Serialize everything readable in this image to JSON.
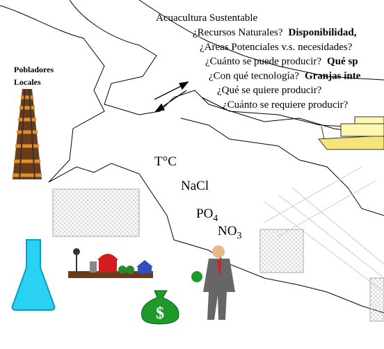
{
  "title": "Acuacultura Sustentable",
  "questions": [
    {
      "text": "¿Recursos Naturales?",
      "bold": "Disponibilidad,"
    },
    {
      "text": "¿Areas Potenciales v.s. necesidades?"
    },
    {
      "text": "¿Cuánto se puede producir?",
      "bold": "Qué sp"
    },
    {
      "text": "¿Con qué tecnología?",
      "bold": "Granjas inte"
    },
    {
      "text": "¿Qué se quiere producir?"
    },
    {
      "text": "¿Cuánto se requiere producir?"
    }
  ],
  "pobladores": [
    "Pobladores",
    "Locales"
  ],
  "parameters": {
    "temperature": "T°C",
    "salt": "NaCl",
    "phosphate": {
      "text": "PO",
      "sub": "4"
    },
    "nitrate": {
      "text": "NO",
      "sub": "3"
    }
  },
  "money_symbol": "$"
}
